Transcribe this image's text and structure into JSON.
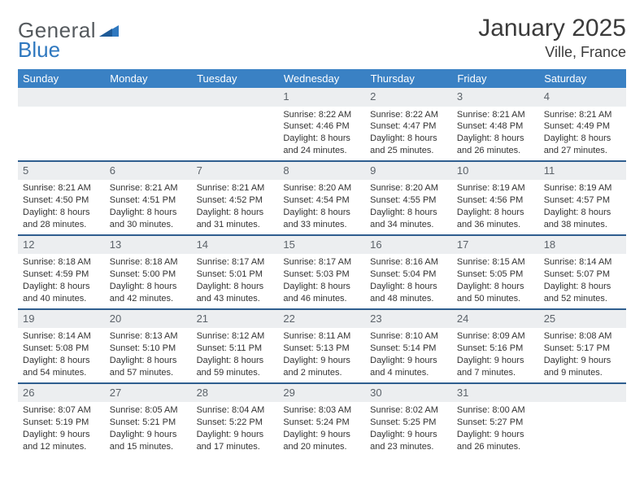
{
  "brand": {
    "part1": "General",
    "part2": "Blue"
  },
  "title": "January 2025",
  "location": "Ville, France",
  "styling": {
    "header_bg": "#3a81c4",
    "header_text": "#ffffff",
    "row_divider": "#2f5e8f",
    "daynum_bg": "#eceef0",
    "daynum_text": "#5c636a",
    "body_text": "#333333",
    "page_bg": "#ffffff",
    "title_color": "#3b3b3b",
    "logo_gray": "#555a5e",
    "logo_blue": "#2f78bf",
    "title_fontsize": 30,
    "location_fontsize": 18,
    "dayheader_fontsize": 13,
    "cell_fontsize": 11,
    "columns": 7,
    "rows": 5
  },
  "day_headers": [
    "Sunday",
    "Monday",
    "Tuesday",
    "Wednesday",
    "Thursday",
    "Friday",
    "Saturday"
  ],
  "weeks": [
    [
      {
        "num": "",
        "lines": []
      },
      {
        "num": "",
        "lines": []
      },
      {
        "num": "",
        "lines": []
      },
      {
        "num": "1",
        "lines": [
          "Sunrise: 8:22 AM",
          "Sunset: 4:46 PM",
          "Daylight: 8 hours and 24 minutes."
        ]
      },
      {
        "num": "2",
        "lines": [
          "Sunrise: 8:22 AM",
          "Sunset: 4:47 PM",
          "Daylight: 8 hours and 25 minutes."
        ]
      },
      {
        "num": "3",
        "lines": [
          "Sunrise: 8:21 AM",
          "Sunset: 4:48 PM",
          "Daylight: 8 hours and 26 minutes."
        ]
      },
      {
        "num": "4",
        "lines": [
          "Sunrise: 8:21 AM",
          "Sunset: 4:49 PM",
          "Daylight: 8 hours and 27 minutes."
        ]
      }
    ],
    [
      {
        "num": "5",
        "lines": [
          "Sunrise: 8:21 AM",
          "Sunset: 4:50 PM",
          "Daylight: 8 hours and 28 minutes."
        ]
      },
      {
        "num": "6",
        "lines": [
          "Sunrise: 8:21 AM",
          "Sunset: 4:51 PM",
          "Daylight: 8 hours and 30 minutes."
        ]
      },
      {
        "num": "7",
        "lines": [
          "Sunrise: 8:21 AM",
          "Sunset: 4:52 PM",
          "Daylight: 8 hours and 31 minutes."
        ]
      },
      {
        "num": "8",
        "lines": [
          "Sunrise: 8:20 AM",
          "Sunset: 4:54 PM",
          "Daylight: 8 hours and 33 minutes."
        ]
      },
      {
        "num": "9",
        "lines": [
          "Sunrise: 8:20 AM",
          "Sunset: 4:55 PM",
          "Daylight: 8 hours and 34 minutes."
        ]
      },
      {
        "num": "10",
        "lines": [
          "Sunrise: 8:19 AM",
          "Sunset: 4:56 PM",
          "Daylight: 8 hours and 36 minutes."
        ]
      },
      {
        "num": "11",
        "lines": [
          "Sunrise: 8:19 AM",
          "Sunset: 4:57 PM",
          "Daylight: 8 hours and 38 minutes."
        ]
      }
    ],
    [
      {
        "num": "12",
        "lines": [
          "Sunrise: 8:18 AM",
          "Sunset: 4:59 PM",
          "Daylight: 8 hours and 40 minutes."
        ]
      },
      {
        "num": "13",
        "lines": [
          "Sunrise: 8:18 AM",
          "Sunset: 5:00 PM",
          "Daylight: 8 hours and 42 minutes."
        ]
      },
      {
        "num": "14",
        "lines": [
          "Sunrise: 8:17 AM",
          "Sunset: 5:01 PM",
          "Daylight: 8 hours and 43 minutes."
        ]
      },
      {
        "num": "15",
        "lines": [
          "Sunrise: 8:17 AM",
          "Sunset: 5:03 PM",
          "Daylight: 8 hours and 46 minutes."
        ]
      },
      {
        "num": "16",
        "lines": [
          "Sunrise: 8:16 AM",
          "Sunset: 5:04 PM",
          "Daylight: 8 hours and 48 minutes."
        ]
      },
      {
        "num": "17",
        "lines": [
          "Sunrise: 8:15 AM",
          "Sunset: 5:05 PM",
          "Daylight: 8 hours and 50 minutes."
        ]
      },
      {
        "num": "18",
        "lines": [
          "Sunrise: 8:14 AM",
          "Sunset: 5:07 PM",
          "Daylight: 8 hours and 52 minutes."
        ]
      }
    ],
    [
      {
        "num": "19",
        "lines": [
          "Sunrise: 8:14 AM",
          "Sunset: 5:08 PM",
          "Daylight: 8 hours and 54 minutes."
        ]
      },
      {
        "num": "20",
        "lines": [
          "Sunrise: 8:13 AM",
          "Sunset: 5:10 PM",
          "Daylight: 8 hours and 57 minutes."
        ]
      },
      {
        "num": "21",
        "lines": [
          "Sunrise: 8:12 AM",
          "Sunset: 5:11 PM",
          "Daylight: 8 hours and 59 minutes."
        ]
      },
      {
        "num": "22",
        "lines": [
          "Sunrise: 8:11 AM",
          "Sunset: 5:13 PM",
          "Daylight: 9 hours and 2 minutes."
        ]
      },
      {
        "num": "23",
        "lines": [
          "Sunrise: 8:10 AM",
          "Sunset: 5:14 PM",
          "Daylight: 9 hours and 4 minutes."
        ]
      },
      {
        "num": "24",
        "lines": [
          "Sunrise: 8:09 AM",
          "Sunset: 5:16 PM",
          "Daylight: 9 hours and 7 minutes."
        ]
      },
      {
        "num": "25",
        "lines": [
          "Sunrise: 8:08 AM",
          "Sunset: 5:17 PM",
          "Daylight: 9 hours and 9 minutes."
        ]
      }
    ],
    [
      {
        "num": "26",
        "lines": [
          "Sunrise: 8:07 AM",
          "Sunset: 5:19 PM",
          "Daylight: 9 hours and 12 minutes."
        ]
      },
      {
        "num": "27",
        "lines": [
          "Sunrise: 8:05 AM",
          "Sunset: 5:21 PM",
          "Daylight: 9 hours and 15 minutes."
        ]
      },
      {
        "num": "28",
        "lines": [
          "Sunrise: 8:04 AM",
          "Sunset: 5:22 PM",
          "Daylight: 9 hours and 17 minutes."
        ]
      },
      {
        "num": "29",
        "lines": [
          "Sunrise: 8:03 AM",
          "Sunset: 5:24 PM",
          "Daylight: 9 hours and 20 minutes."
        ]
      },
      {
        "num": "30",
        "lines": [
          "Sunrise: 8:02 AM",
          "Sunset: 5:25 PM",
          "Daylight: 9 hours and 23 minutes."
        ]
      },
      {
        "num": "31",
        "lines": [
          "Sunrise: 8:00 AM",
          "Sunset: 5:27 PM",
          "Daylight: 9 hours and 26 minutes."
        ]
      },
      {
        "num": "",
        "lines": []
      }
    ]
  ]
}
